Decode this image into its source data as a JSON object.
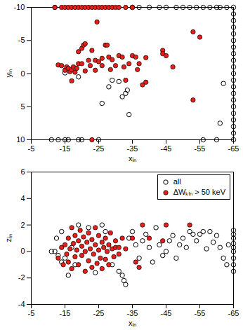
{
  "chart_data": [
    {
      "type": "scatter",
      "x_label": "xᵢₙ",
      "y_label": "yᵢₙ",
      "xlim": [
        -5,
        -65
      ],
      "xticks": [
        -5,
        -15,
        -25,
        -35,
        -45,
        -55,
        -65
      ],
      "ylim": [
        10,
        -10
      ],
      "yticks": [
        -10,
        -5,
        0,
        5,
        10
      ],
      "series": [
        {
          "name": "all",
          "color": "#000000",
          "marker": "circle-open",
          "x": [
            -11,
            -13,
            -15,
            -16,
            -19,
            -20,
            -25,
            -56,
            -60,
            -12,
            -35,
            -37,
            -40,
            -43,
            -45,
            -48,
            -50,
            -52,
            -54,
            -56,
            -58,
            -60,
            -61,
            -63,
            -26,
            -28,
            -29,
            -31,
            -32,
            -33,
            -33.5,
            -34,
            -15,
            -19,
            -61,
            -62,
            -65,
            -65,
            -65,
            -65,
            -65,
            -65,
            -65,
            -65,
            -65,
            -65,
            -65,
            -65,
            -65,
            -65,
            -65,
            -65,
            -65,
            -65,
            -65,
            -65,
            -65
          ],
          "values": [
            10,
            10,
            10,
            10,
            10,
            10,
            10,
            10,
            10,
            -10,
            -10,
            -10,
            -10,
            -10,
            -10,
            -10,
            -10,
            -10,
            -10,
            -10,
            -10,
            -10,
            -10,
            -10,
            4.5,
            2.0,
            1.0,
            1.2,
            3.5,
            3.0,
            2.5,
            6.2,
            -0.1,
            0.5,
            7.5,
            1.5,
            -10,
            -9,
            -8,
            -7,
            -6,
            -5,
            -4,
            -3,
            -2,
            -1,
            0,
            1,
            2,
            3,
            4,
            5,
            6,
            7,
            8,
            9,
            10
          ]
        },
        {
          "name": "ΔWₖᵢₙ > 50 keV",
          "color": "#e8201c",
          "marker": "circle-filled",
          "x": [
            -12,
            -14,
            -15,
            -16,
            -17,
            -18,
            -19,
            -20,
            -21,
            -22,
            -23,
            -24,
            -25,
            -26,
            -27,
            -28,
            -29,
            -30,
            -31,
            -33,
            -35,
            -13,
            -14,
            -15,
            -15.5,
            -16,
            -16.5,
            -17,
            -17.5,
            -18,
            -18.5,
            -19,
            -19,
            -20,
            -20.5,
            -21,
            -21,
            -22,
            -22.5,
            -23,
            -24,
            -24,
            -24.5,
            -25,
            -26,
            -26,
            -27,
            -27.5,
            -28,
            -28.5,
            -29,
            -30,
            -31,
            -32,
            -32.5,
            -33,
            -34,
            -35,
            -36,
            -36.5,
            -37,
            -38,
            -39,
            -39,
            -44,
            -44,
            -45,
            -47,
            -53,
            -53,
            -55,
            -20,
            -17,
            -23
          ],
          "values": [
            -10,
            -10,
            -10,
            -10,
            -10,
            -10,
            -10,
            -10,
            -10,
            -10,
            -10,
            -10,
            -10,
            -10,
            -10,
            -10,
            -10,
            -10,
            -10,
            -10,
            -10,
            -1.3,
            -1.2,
            -0.5,
            -1.0,
            -0.8,
            -0.3,
            -0.6,
            -1.0,
            -0.2,
            -0.8,
            -1.5,
            -3.3,
            -3.8,
            -4.3,
            -4.5,
            -0.4,
            -2.0,
            -1.2,
            -3.5,
            -2.0,
            -0.5,
            -7.8,
            -1.8,
            -1.2,
            -2.3,
            -4.3,
            -4.3,
            -2.5,
            -0.6,
            -2.1,
            -1.2,
            -2.7,
            -2.5,
            -1.0,
            1.0,
            -1.5,
            -2.7,
            -2.5,
            -0.6,
            -1.5,
            1.7,
            -2.4,
            1.3,
            -3.5,
            -3.0,
            -2.7,
            -1.0,
            -6.3,
            4.0,
            -5.5,
            -1.5,
            1.1,
            10
          ]
        }
      ]
    },
    {
      "type": "scatter",
      "x_label": "xᵢₙ",
      "y_label": "zᵢₙ",
      "xlim": [
        -5,
        -65
      ],
      "xticks": [
        -5,
        -15,
        -25,
        -35,
        -45,
        -55,
        -65
      ],
      "ylim": [
        -4,
        6
      ],
      "yticks": [
        -4,
        -2,
        0,
        2,
        4,
        6
      ],
      "legend": "top-right",
      "series": [
        {
          "name": "all",
          "color": "#000000",
          "marker": "circle-open",
          "x": [
            -11,
            -12,
            -12.5,
            -13,
            -14,
            -14,
            -15,
            -16,
            -17,
            -18,
            -19,
            -22,
            -24,
            -26,
            -27,
            -29,
            -31,
            -32,
            -32.5,
            -33,
            -34,
            -35,
            -36,
            -37,
            -38,
            -39,
            -40,
            -41,
            -42,
            -43,
            -44,
            -45,
            -46,
            -47,
            -48,
            -49,
            -50,
            -51,
            -52,
            -53,
            -54,
            -55,
            -56,
            -57,
            -58,
            -59,
            -60,
            -61,
            -62,
            -63,
            -63.5,
            -65,
            -65,
            -65,
            -65,
            -65,
            -65,
            -65,
            -65,
            -65
          ],
          "values": [
            0,
            0,
            1,
            -0.3,
            -0.8,
            1.5,
            -0.5,
            -1.8,
            0.3,
            -1.0,
            2.0,
            1.8,
            -1.6,
            2.0,
            1.5,
            -1.0,
            -1.5,
            -1.8,
            -2.2,
            -2.5,
            1.0,
            1.5,
            0.5,
            -0.5,
            0.8,
            1.3,
            0.3,
            -0.8,
            1.8,
            0.5,
            -0.3,
            0.0,
            0.8,
            1.2,
            -0.5,
            0.5,
            1.0,
            0.3,
            1.5,
            1.3,
            0.8,
            1.3,
            1.5,
            0.2,
            1.5,
            0.7,
            1.2,
            0.3,
            -0.5,
            -1.0,
            0.5,
            -1.5,
            -1.0,
            -0.5,
            0,
            0.3,
            0.6,
            1.0,
            1.3,
            1.6
          ]
        },
        {
          "name": "ΔWₖᵢₙ > 50 keV",
          "color": "#e8201c",
          "marker": "circle-filled",
          "x": [
            -13,
            -14,
            -14.5,
            -15,
            -15.5,
            -16,
            -16,
            -16.5,
            -17,
            -17,
            -17.5,
            -18,
            -18,
            -18.5,
            -19,
            -19,
            -19.5,
            -20,
            -20,
            -20.5,
            -21,
            -21,
            -21.5,
            -22,
            -22,
            -22.5,
            -23,
            -23,
            -23.5,
            -24,
            -24,
            -24.5,
            -25,
            -25,
            -25.5,
            -26,
            -26,
            -26.5,
            -27,
            -27,
            -27.5,
            -28,
            -28,
            -28.5,
            -29,
            -29.5,
            -30,
            -30,
            -31,
            -31,
            -32,
            -33,
            -35,
            -36,
            -38,
            -40,
            -44,
            -45,
            -52,
            -37
          ],
          "values": [
            -0.5,
            0.3,
            -1,
            0.5,
            -0.2,
            1.0,
            -0.8,
            0.2,
            1.8,
            -1.3,
            0.6,
            -0.4,
            1.2,
            0.1,
            -1.0,
            0.8,
            1.6,
            -0.3,
            0.4,
            1.1,
            -1.5,
            0.0,
            0.7,
            -0.7,
            1.4,
            0.2,
            -1.2,
            0.9,
            -0.2,
            0.5,
            1.8,
            -0.9,
            0.1,
            1.2,
            -0.5,
            0.7,
            -1.3,
            0.3,
            1.0,
            -0.6,
            0.0,
            0.5,
            -1.0,
            1.4,
            0.2,
            -0.4,
            0.8,
            0.3,
            -0.2,
            0.3,
            1.0,
            0.2,
            1.0,
            -0.8,
            2.0,
            1.0,
            0.8,
            2.0,
            2.0,
            -1.2
          ]
        }
      ]
    }
  ]
}
